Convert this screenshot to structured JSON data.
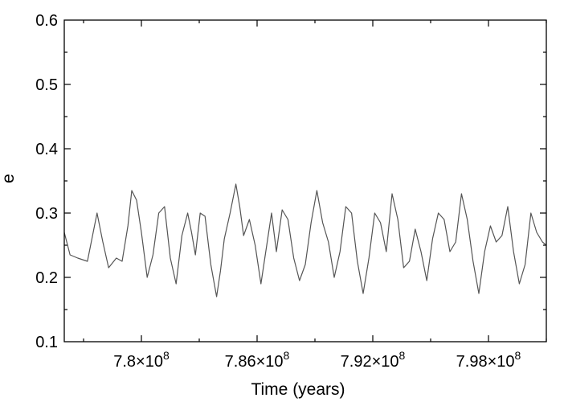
{
  "chart_data": {
    "type": "line",
    "title": "",
    "xlabel": "Time (years)",
    "ylabel": "e",
    "xlim": [
      776000000,
      801000000
    ],
    "ylim": [
      0.1,
      0.6
    ],
    "x_ticks": [
      {
        "value": 780000000,
        "mantissa": "7.8",
        "times": "×10",
        "exp": "8"
      },
      {
        "value": 786000000,
        "mantissa": "7.86",
        "times": "×10",
        "exp": "8"
      },
      {
        "value": 792000000,
        "mantissa": "7.92",
        "times": "×10",
        "exp": "8"
      },
      {
        "value": 798000000,
        "mantissa": "7.98",
        "times": "×10",
        "exp": "8"
      }
    ],
    "y_ticks": [
      "0.1",
      "0.2",
      "0.3",
      "0.4",
      "0.5",
      "0.6"
    ],
    "grid": false,
    "line_color": "#555555",
    "series": [
      {
        "x": [
          776000000,
          776300000,
          776700000,
          777200000,
          777500000,
          777700000,
          778000000,
          778300000,
          778700000,
          779000000,
          779300000,
          779500000,
          779750000,
          780000000,
          780300000,
          780600000,
          780900000,
          781200000,
          781500000,
          781800000,
          782100000,
          782400000,
          782600000,
          782800000,
          783050000,
          783300000,
          783600000,
          783900000,
          784100000,
          784300000,
          784600000,
          784900000,
          785100000,
          785300000,
          785600000,
          785900000,
          786200000,
          786500000,
          786750000,
          787000000,
          787300000,
          787600000,
          787900000,
          788200000,
          788500000,
          788800000,
          789100000,
          789400000,
          789700000,
          790000000,
          790300000,
          790600000,
          790900000,
          791200000,
          791500000,
          791800000,
          792100000,
          792400000,
          792700000,
          793000000,
          793300000,
          793600000,
          793900000,
          794200000,
          794500000,
          794800000,
          795100000,
          795400000,
          795700000,
          796000000,
          796300000,
          796600000,
          796900000,
          797200000,
          797500000,
          797800000,
          798100000,
          798400000,
          798700000,
          799000000,
          799300000,
          799600000,
          799900000,
          800200000,
          800500000,
          800800000,
          801000000
        ],
        "y": [
          0.27,
          0.235,
          0.23,
          0.225,
          0.27,
          0.3,
          0.255,
          0.215,
          0.23,
          0.225,
          0.28,
          0.335,
          0.32,
          0.27,
          0.2,
          0.235,
          0.3,
          0.31,
          0.23,
          0.19,
          0.265,
          0.3,
          0.27,
          0.235,
          0.3,
          0.295,
          0.22,
          0.17,
          0.21,
          0.26,
          0.3,
          0.345,
          0.31,
          0.265,
          0.29,
          0.25,
          0.19,
          0.25,
          0.3,
          0.24,
          0.305,
          0.29,
          0.23,
          0.195,
          0.22,
          0.285,
          0.335,
          0.285,
          0.255,
          0.2,
          0.24,
          0.31,
          0.3,
          0.225,
          0.175,
          0.23,
          0.3,
          0.285,
          0.24,
          0.33,
          0.29,
          0.215,
          0.225,
          0.275,
          0.24,
          0.195,
          0.26,
          0.3,
          0.29,
          0.24,
          0.255,
          0.33,
          0.29,
          0.225,
          0.175,
          0.24,
          0.28,
          0.255,
          0.265,
          0.31,
          0.24,
          0.19,
          0.22,
          0.3,
          0.27,
          0.255,
          0.25
        ]
      }
    ]
  }
}
